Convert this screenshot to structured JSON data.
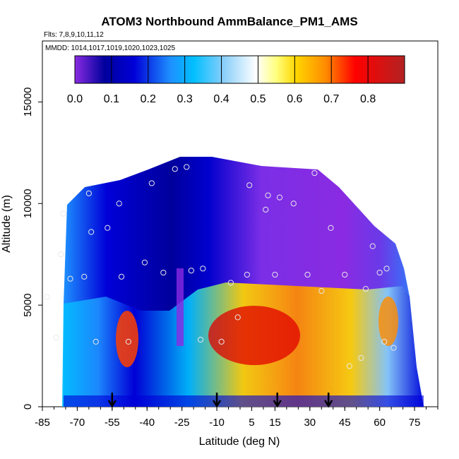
{
  "chart_data": {
    "type": "heatmap",
    "title": "ATOM3 Northbound AmmBalance_PM1_AMS",
    "flights_note": "Flts: 7,8,9,10,11,12",
    "dates_note": "MMDD: 1014,1017,1019,1020,1023,1025",
    "xlabel": "Latitude (deg N)",
    "ylabel": "Altitude (m)",
    "xlim": [
      -85,
      85
    ],
    "ylim": [
      0,
      18000
    ],
    "xticks": [
      "-85",
      "-70",
      "-55",
      "-40",
      "-25",
      "-10",
      "5",
      "15",
      "30",
      "45",
      "60",
      "75"
    ],
    "yticks": [
      "0",
      "5000",
      "10000",
      "15000"
    ],
    "colorbar": {
      "range": [
        0,
        0.9
      ],
      "ticks": [
        "0.0",
        "0.1",
        "0.2",
        "0.3",
        "0.4",
        "0.5",
        "0.6",
        "0.7",
        "0.8"
      ],
      "colors": [
        "#8a2be2",
        "#00009c",
        "#0000d8",
        "#1e90ff",
        "#00bfff",
        "#87cefa",
        "#ffffff",
        "#ffff80",
        "#ffd700",
        "#ff8c00",
        "#ff0000",
        "#b22222"
      ]
    },
    "profile_latitudes": [
      -55,
      -10,
      16,
      38
    ],
    "sample_points": [
      {
        "lat": -83,
        "alt": 5400
      },
      {
        "lat": -79,
        "alt": 3400
      },
      {
        "lat": -77,
        "alt": 7500
      },
      {
        "lat": -76,
        "alt": 9500
      },
      {
        "lat": -73,
        "alt": 6300
      },
      {
        "lat": -67,
        "alt": 6400
      },
      {
        "lat": -65,
        "alt": 10500
      },
      {
        "lat": -64,
        "alt": 8600
      },
      {
        "lat": -62,
        "alt": 3200
      },
      {
        "lat": -57,
        "alt": 8800
      },
      {
        "lat": -52,
        "alt": 10000
      },
      {
        "lat": -51,
        "alt": 6400
      },
      {
        "lat": -48,
        "alt": 3200
      },
      {
        "lat": -41,
        "alt": 7100
      },
      {
        "lat": -38,
        "alt": 11000
      },
      {
        "lat": -33,
        "alt": 6600
      },
      {
        "lat": -28,
        "alt": 11700
      },
      {
        "lat": -23,
        "alt": 11800
      },
      {
        "lat": -21,
        "alt": 6700
      },
      {
        "lat": -17,
        "alt": 3300
      },
      {
        "lat": -16,
        "alt": 6800
      },
      {
        "lat": -8,
        "alt": 3200
      },
      {
        "lat": -4,
        "alt": 6100
      },
      {
        "lat": -1,
        "alt": 4400
      },
      {
        "lat": 3,
        "alt": 6500
      },
      {
        "lat": 4,
        "alt": 10900
      },
      {
        "lat": 11,
        "alt": 9700
      },
      {
        "lat": 12,
        "alt": 10400
      },
      {
        "lat": 15,
        "alt": 6500
      },
      {
        "lat": 17,
        "alt": 10300
      },
      {
        "lat": 23,
        "alt": 10000
      },
      {
        "lat": 29,
        "alt": 6500
      },
      {
        "lat": 32,
        "alt": 11500
      },
      {
        "lat": 35,
        "alt": 5700
      },
      {
        "lat": 39,
        "alt": 8800
      },
      {
        "lat": 45,
        "alt": 6500
      },
      {
        "lat": 47,
        "alt": 2000
      },
      {
        "lat": 52,
        "alt": 2400
      },
      {
        "lat": 54,
        "alt": 5800
      },
      {
        "lat": 57,
        "alt": 7900
      },
      {
        "lat": 60,
        "alt": 6600
      },
      {
        "lat": 62,
        "alt": 3200
      },
      {
        "lat": 63,
        "alt": 6800
      },
      {
        "lat": 66,
        "alt": 2900
      }
    ]
  }
}
